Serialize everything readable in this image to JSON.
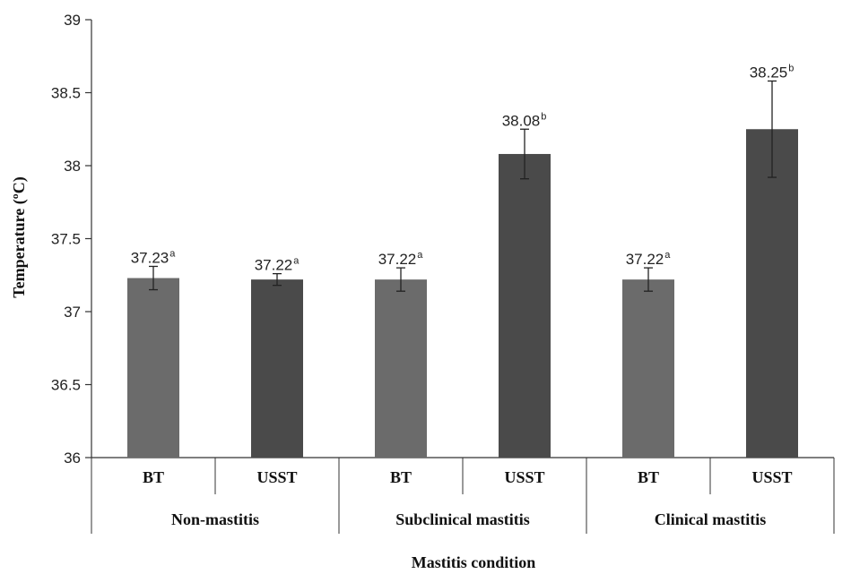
{
  "chart_data": {
    "type": "bar",
    "title": "",
    "ylabel": "Temperature (ºC)",
    "xlabel": "Mastitis condition",
    "ylim": [
      36,
      39
    ],
    "yticks": [
      "36",
      "36.5",
      "37",
      "37.5",
      "38",
      "38.5",
      "39"
    ],
    "grid": false,
    "groups": [
      "Non-mastitis",
      "Subclinical mastitis",
      "Clinical mastitis"
    ],
    "bars": [
      {
        "group": "Non-mastitis",
        "label": "BT",
        "value": 37.23,
        "error": 0.08,
        "value_label": "37.23",
        "superscript": "a",
        "color": "#6b6b6b"
      },
      {
        "group": "Non-mastitis",
        "label": "USST",
        "value": 37.22,
        "error": 0.04,
        "value_label": "37.22",
        "superscript": "a",
        "color": "#4a4a4a"
      },
      {
        "group": "Subclinical mastitis",
        "label": "BT",
        "value": 37.22,
        "error": 0.08,
        "value_label": "37.22",
        "superscript": "a",
        "color": "#6b6b6b"
      },
      {
        "group": "Subclinical mastitis",
        "label": "USST",
        "value": 38.08,
        "error": 0.17,
        "value_label": "38.08",
        "superscript": "b",
        "color": "#4a4a4a"
      },
      {
        "group": "Clinical mastitis",
        "label": "BT",
        "value": 37.22,
        "error": 0.08,
        "value_label": "37.22",
        "superscript": "a",
        "color": "#6b6b6b"
      },
      {
        "group": "Clinical mastitis",
        "label": "USST",
        "value": 38.25,
        "error": 0.33,
        "value_label": "38.25",
        "superscript": "b",
        "color": "#4a4a4a"
      }
    ]
  }
}
